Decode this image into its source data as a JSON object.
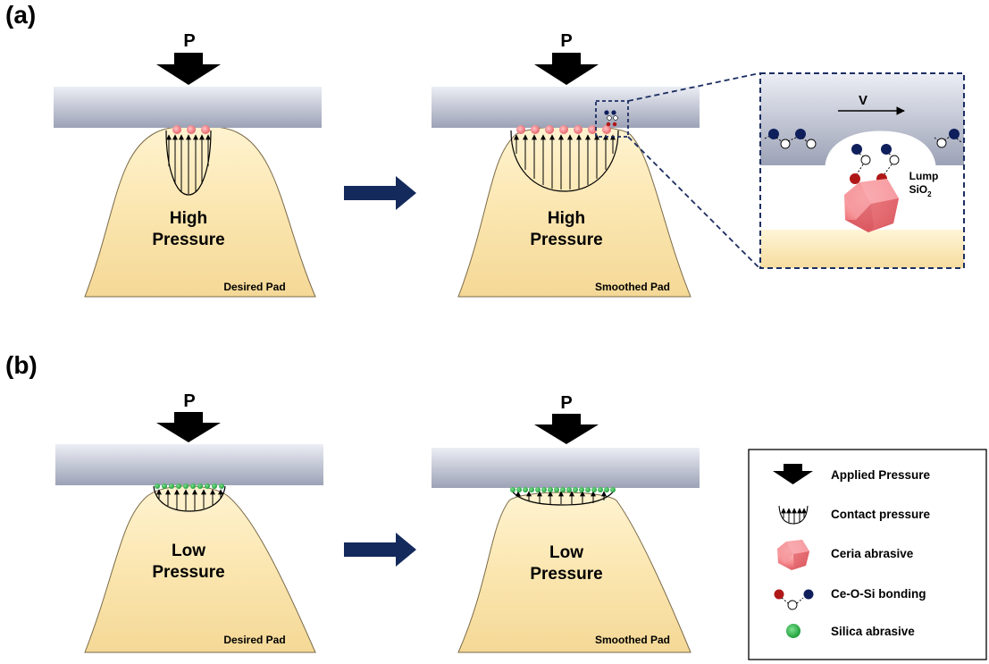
{
  "panels": [
    {
      "label": "(a)",
      "left": {
        "pressure_symbol": "P",
        "pressure_line1": "High",
        "pressure_line2": "Pressure",
        "caption": "Desired Pad"
      },
      "right": {
        "pressure_symbol": "P",
        "pressure_line1": "High",
        "pressure_line2": "Pressure",
        "caption": "Smoothed Pad"
      }
    },
    {
      "label": "(b)",
      "left": {
        "pressure_symbol": "P",
        "pressure_line1": "Low",
        "pressure_line2": "Pressure",
        "caption": "Desired Pad"
      },
      "right": {
        "pressure_symbol": "P",
        "pressure_line1": "Low",
        "pressure_line2": "Pressure",
        "caption": "Smoothed Pad"
      }
    }
  ],
  "zoom": {
    "velocity": "V",
    "lump_label": "Lump",
    "sio2_base": "SiO",
    "sio2_sub": "2"
  },
  "legend": {
    "items": [
      {
        "icon": "applied-pressure-arrow-icon",
        "label": "Applied Pressure"
      },
      {
        "icon": "contact-pressure-icon",
        "label": "Contact pressure"
      },
      {
        "icon": "ceria-abrasive-icon",
        "label": "Ceria abrasive"
      },
      {
        "icon": "ce-o-si-bond-icon",
        "label": "Ce-O-Si bonding"
      },
      {
        "icon": "silica-abrasive-icon",
        "label": "Silica abrasive"
      }
    ]
  },
  "colors": {
    "wafer_top": "#eceef5",
    "wafer_bottom": "#9ca2b6",
    "pad_top": "#fff0c6",
    "pad_bottom": "#f6dca0",
    "process_arrow": "#142a5c",
    "ceria": "#f07a80",
    "silica": "#2bb84a",
    "bond_red": "#b01818",
    "bond_blue": "#0f1f5c",
    "dashed_box": "#1c2e62"
  }
}
